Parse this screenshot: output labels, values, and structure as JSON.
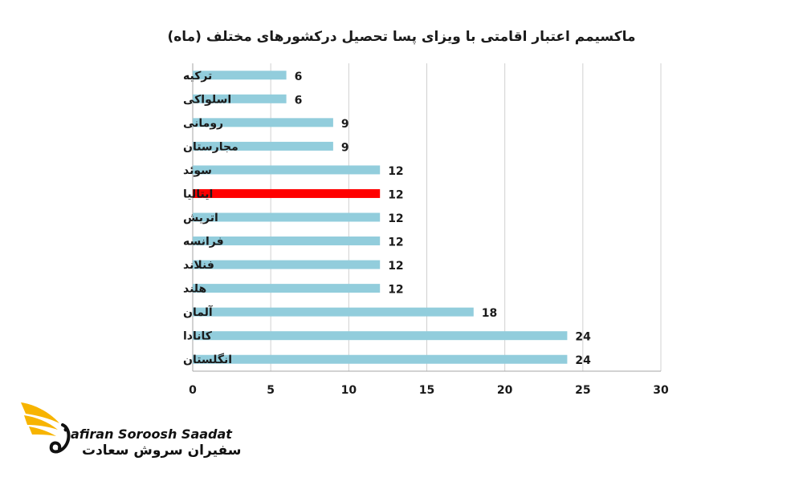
{
  "chart_data": {
    "type": "bar",
    "orientation": "horizontal",
    "title": "ماکسیمم اعتبار اقامتی با ویزای پسا تحصیل درکشورهای مختلف (ماه)",
    "categories": [
      "ترکیه",
      "اسلواکی",
      "رومانی",
      "مجارستان",
      "سوئد",
      "ایتالیا",
      "اتریش",
      "فرانسه",
      "فنلاند",
      "هلند",
      "آلمان",
      "کانادا",
      "انگلستان"
    ],
    "values": [
      6,
      6,
      9,
      9,
      12,
      12,
      12,
      12,
      12,
      12,
      18,
      24,
      24
    ],
    "highlight_index": 5,
    "xlim": [
      0,
      30
    ],
    "xticks": [
      0,
      5,
      10,
      15,
      20,
      25,
      30
    ],
    "grid": "vertical",
    "colors": {
      "bar": "#92cddc",
      "highlight": "#ff0000",
      "grid": "#d0d0d0",
      "axis": "#a6a6a6"
    }
  },
  "logo": {
    "text_en": "afiran Soroosh Saadat",
    "text_fa": "سفیران سروش سعادت",
    "icon": "eagle-wing-icon",
    "color": "#f7b400"
  }
}
